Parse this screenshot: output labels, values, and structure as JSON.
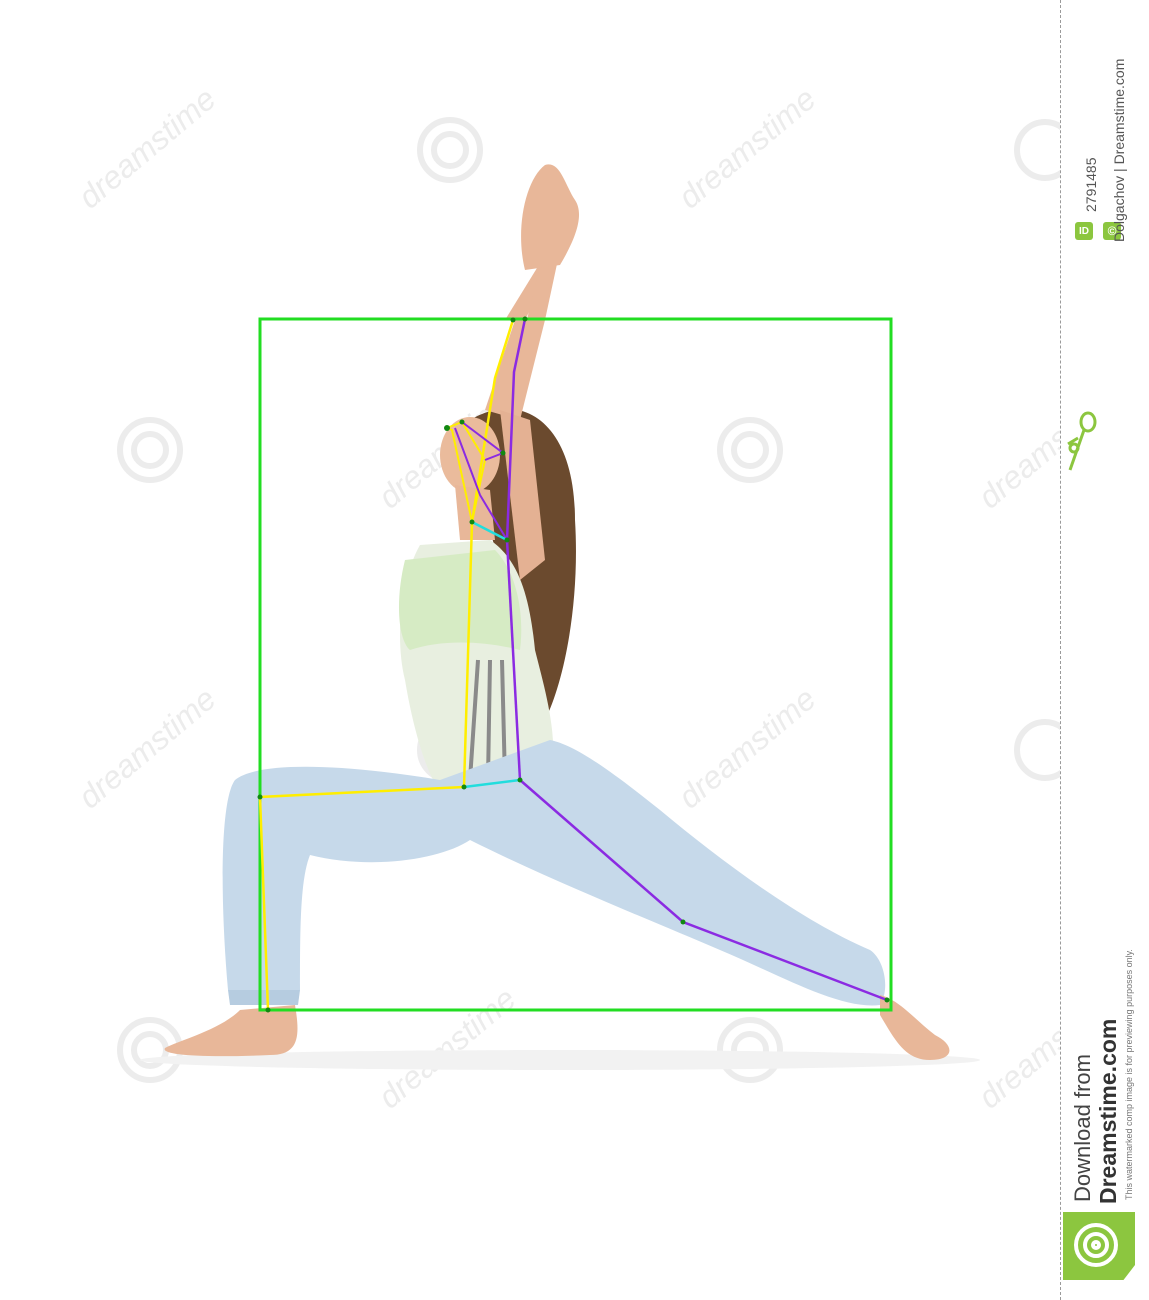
{
  "watermark": {
    "site_text": "dreamstime",
    "id_label": "ID",
    "image_id": "2791485",
    "copyright_symbol": "©",
    "credit": "Dolgachov | Dreamstime.com",
    "download_line": "Download from",
    "brand": "Dreamstime.com",
    "disclaimer": "This watermarked comp image is for previewing purposes only.",
    "brand_color": "#8cc63f"
  },
  "annotation": {
    "box_color": "#22dd22",
    "left_side_color": "#ffee00",
    "right_side_color": "#8b2be2",
    "center_color": "#22dddd",
    "joint_color": "#118811",
    "subject": "woman in yoga high lunge pose, arms raised"
  },
  "icons": {
    "logo": "dreamstime-spiral-icon",
    "scissors": "scissors-icon"
  }
}
